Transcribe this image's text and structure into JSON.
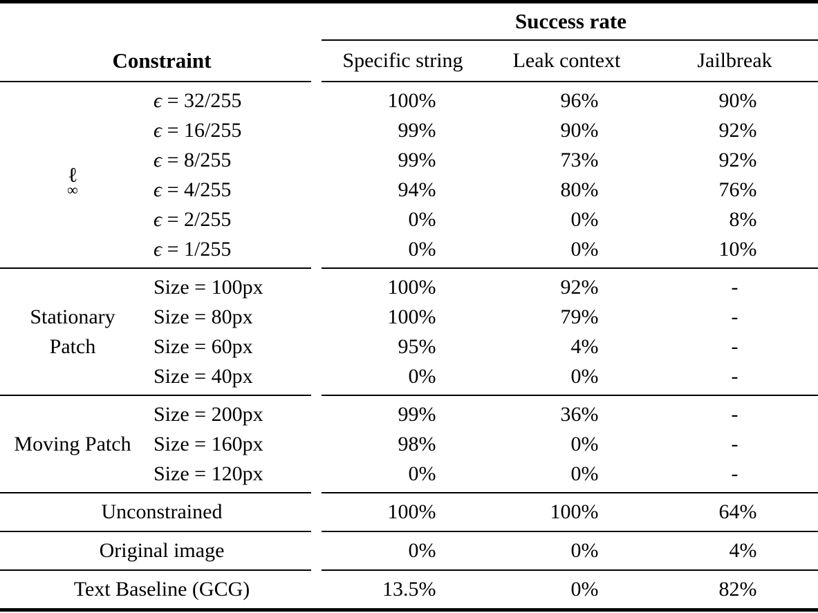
{
  "table": {
    "title": "Success rate",
    "constraint_header": "Constraint",
    "columns": [
      "Specific string",
      "Leak context",
      "Jailbreak"
    ],
    "groups": [
      {
        "label_main": "ℓ",
        "label_sub": "∞",
        "rows": [
          {
            "sym": "ϵ",
            "rest": " = 32/255",
            "values": [
              "100%",
              "96%",
              "90%"
            ]
          },
          {
            "sym": "ϵ",
            "rest": " = 16/255",
            "values": [
              "99%",
              "90%",
              "92%"
            ]
          },
          {
            "sym": "ϵ",
            "rest": " = 8/255",
            "values": [
              "99%",
              "73%",
              "92%"
            ]
          },
          {
            "sym": "ϵ",
            "rest": " = 4/255",
            "values": [
              "94%",
              "80%",
              "76%"
            ]
          },
          {
            "sym": "ϵ",
            "rest": " = 2/255",
            "values": [
              "0%",
              "0%",
              "8%"
            ]
          },
          {
            "sym": "ϵ",
            "rest": " = 1/255",
            "values": [
              "0%",
              "0%",
              "10%"
            ]
          }
        ]
      },
      {
        "label_lines": [
          "Stationary",
          "Patch"
        ],
        "rows": [
          {
            "sym": "",
            "rest": "Size = 100px",
            "values": [
              "100%",
              "92%",
              "-"
            ]
          },
          {
            "sym": "",
            "rest": "Size = 80px",
            "values": [
              "100%",
              "79%",
              "-"
            ]
          },
          {
            "sym": "",
            "rest": "Size = 60px",
            "values": [
              "95%",
              "4%",
              "-"
            ]
          },
          {
            "sym": "",
            "rest": "Size = 40px",
            "values": [
              "0%",
              "0%",
              "-"
            ]
          }
        ]
      },
      {
        "label_lines": [
          "Moving Patch"
        ],
        "rows": [
          {
            "sym": "",
            "rest": "Size = 200px",
            "values": [
              "99%",
              "36%",
              "-"
            ]
          },
          {
            "sym": "",
            "rest": "Size = 160px",
            "values": [
              "98%",
              "0%",
              "-"
            ]
          },
          {
            "sym": "",
            "rest": "Size = 120px",
            "values": [
              "0%",
              "0%",
              "-"
            ]
          }
        ]
      }
    ],
    "single_rows": [
      {
        "label": "Unconstrained",
        "values": [
          "100%",
          "100%",
          "64%"
        ]
      },
      {
        "label": "Original image",
        "values": [
          "0%",
          "0%",
          "4%"
        ]
      },
      {
        "label": "Text Baseline (GCG)",
        "values": [
          "13.5%",
          "0%",
          "82%"
        ]
      }
    ]
  }
}
